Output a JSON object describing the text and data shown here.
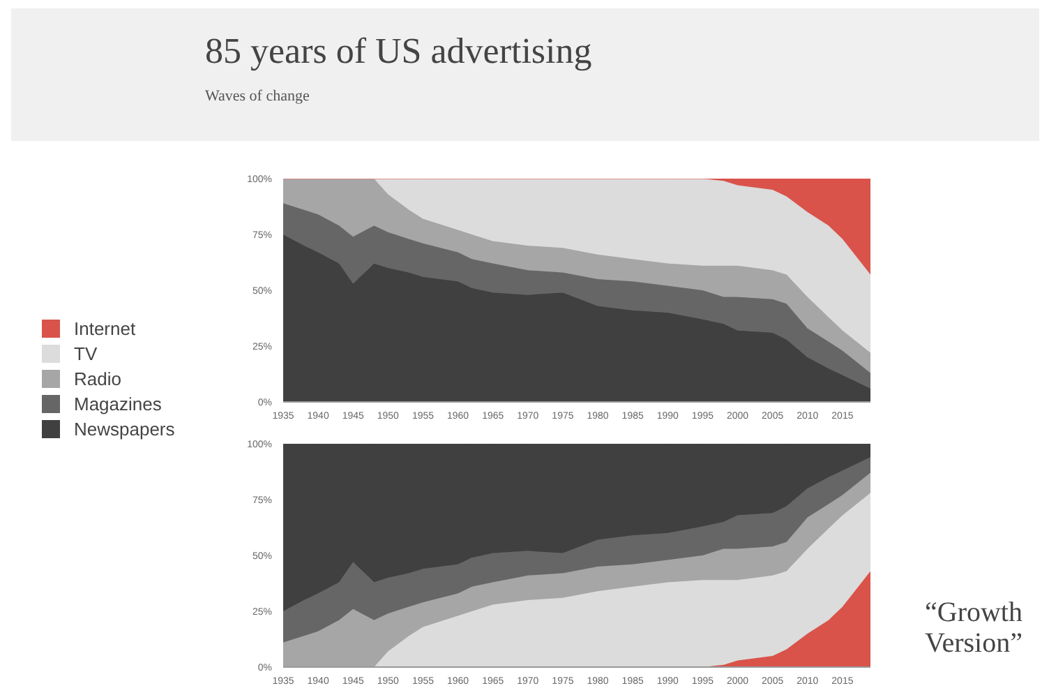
{
  "chart_data": [
    {
      "type": "area",
      "title": "85 years of US advertising",
      "subtitle": "Waves of change",
      "stacked": true,
      "legend": "left",
      "grid": false,
      "x": [
        1935,
        1938,
        1940,
        1943,
        1945,
        1948,
        1950,
        1953,
        1955,
        1960,
        1962,
        1965,
        1970,
        1975,
        1980,
        1985,
        1990,
        1995,
        1998,
        2000,
        2005,
        2007,
        2010,
        2013,
        2015,
        2019
      ],
      "xlim": [
        1935,
        2019
      ],
      "xticks": [
        1935,
        1940,
        1945,
        1950,
        1955,
        1960,
        1965,
        1970,
        1975,
        1980,
        1985,
        1990,
        1995,
        2000,
        2005,
        2010,
        2015
      ],
      "ylim": [
        0,
        100
      ],
      "yticks": [
        {
          "value": 0,
          "label": "0%"
        },
        {
          "value": 25,
          "label": "25%"
        },
        {
          "value": 50,
          "label": "50%"
        },
        {
          "value": 75,
          "label": "75%"
        },
        {
          "value": 100,
          "label": "100%"
        }
      ],
      "series": [
        {
          "name": "Newspapers",
          "color": "#404040",
          "values": [
            75,
            70,
            67,
            62,
            53,
            62,
            60,
            58,
            56,
            54,
            51,
            49,
            48,
            49,
            43,
            41,
            40,
            37,
            35,
            32,
            31,
            28,
            20,
            15,
            12,
            6
          ]
        },
        {
          "name": "Magazines",
          "color": "#666666",
          "values": [
            14,
            16,
            17,
            17,
            21,
            17,
            16,
            15,
            15,
            13,
            13,
            13,
            11,
            9,
            12,
            13,
            12,
            13,
            12,
            15,
            15,
            16,
            13,
            12,
            11,
            7
          ]
        },
        {
          "name": "Radio",
          "color": "#a6a6a6",
          "values": [
            11,
            14,
            16,
            21,
            26,
            21,
            17,
            13,
            11,
            10,
            11,
            10,
            11,
            11,
            11,
            10,
            10,
            11,
            14,
            14,
            13,
            13,
            14,
            11,
            9,
            9
          ]
        },
        {
          "name": "TV",
          "color": "#dcdcdc",
          "values": [
            0,
            0,
            0,
            0,
            0,
            0,
            7,
            14,
            18,
            23,
            25,
            28,
            30,
            31,
            34,
            36,
            38,
            39,
            38,
            36,
            36,
            35,
            38,
            41,
            41,
            35
          ]
        },
        {
          "name": "Internet",
          "color": "#d9534a",
          "values": [
            0,
            0,
            0,
            0,
            0,
            0,
            0,
            0,
            0,
            0,
            0,
            0,
            0,
            0,
            0,
            0,
            0,
            0,
            1,
            3,
            5,
            8,
            15,
            21,
            27,
            43
          ]
        }
      ]
    },
    {
      "type": "area",
      "stacked": true,
      "grid": false,
      "annotations": [
        "“Growth Version”"
      ],
      "x": [
        1935,
        1938,
        1940,
        1943,
        1945,
        1948,
        1950,
        1953,
        1955,
        1960,
        1962,
        1965,
        1970,
        1975,
        1980,
        1985,
        1990,
        1995,
        1998,
        2000,
        2005,
        2007,
        2010,
        2013,
        2015,
        2019
      ],
      "xlim": [
        1935,
        2019
      ],
      "xticks": [
        1935,
        1940,
        1945,
        1950,
        1955,
        1960,
        1965,
        1970,
        1975,
        1980,
        1985,
        1990,
        1995,
        2000,
        2005,
        2010,
        2015
      ],
      "ylim": [
        0,
        100
      ],
      "yticks": [
        {
          "value": 0,
          "label": "0%"
        },
        {
          "value": 25,
          "label": "25%"
        },
        {
          "value": 50,
          "label": "50%"
        },
        {
          "value": 75,
          "label": "75%"
        },
        {
          "value": 100,
          "label": "100%"
        }
      ],
      "series": [
        {
          "color": "#d9534a",
          "values": [
            0,
            0,
            0,
            0,
            0,
            0,
            0,
            0,
            0,
            0,
            0,
            0,
            0,
            0,
            0,
            0,
            0,
            0,
            1,
            3,
            5,
            8,
            15,
            21,
            27,
            43
          ]
        },
        {
          "color": "#dcdcdc",
          "values": [
            0,
            0,
            0,
            0,
            0,
            0,
            7,
            14,
            18,
            23,
            25,
            28,
            30,
            31,
            34,
            36,
            38,
            39,
            38,
            36,
            36,
            35,
            38,
            41,
            41,
            35
          ]
        },
        {
          "color": "#a6a6a6",
          "values": [
            11,
            14,
            16,
            21,
            26,
            21,
            17,
            13,
            11,
            10,
            11,
            10,
            11,
            11,
            11,
            10,
            10,
            11,
            14,
            14,
            13,
            13,
            14,
            11,
            9,
            9
          ]
        },
        {
          "color": "#666666",
          "values": [
            14,
            16,
            17,
            17,
            21,
            17,
            16,
            15,
            15,
            13,
            13,
            13,
            11,
            9,
            12,
            13,
            12,
            13,
            12,
            15,
            15,
            16,
            13,
            12,
            11,
            7
          ]
        },
        {
          "color": "#404040",
          "values": [
            75,
            70,
            67,
            62,
            53,
            62,
            60,
            58,
            56,
            54,
            51,
            49,
            48,
            49,
            43,
            41,
            40,
            37,
            35,
            32,
            31,
            28,
            20,
            15,
            12,
            6
          ]
        }
      ]
    }
  ]
}
